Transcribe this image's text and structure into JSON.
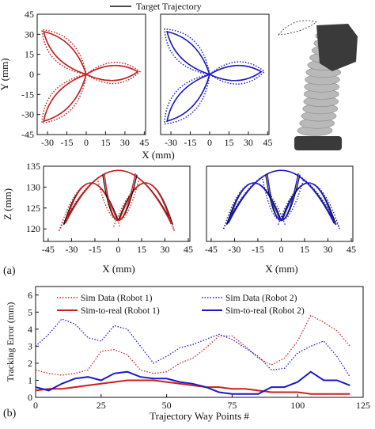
{
  "figure": {
    "top_legend_label": "Target Trajectory",
    "panel_a_label": "(a)",
    "panel_b_label": "(b)"
  },
  "colors": {
    "target": "#111111",
    "robot1": "#cc1f1f",
    "robot2": "#1a1ac8",
    "robot_body": "#b9b9b9",
    "robot_cap": "#3a3a3a"
  },
  "chart_data": [
    {
      "id": "xy_robot1",
      "type": "line",
      "description_role": "X-Y trajectory, robot 1",
      "xlabel": "X (mm)",
      "ylabel": "Y (mm)",
      "xlim": [
        -38,
        46
      ],
      "ylim": [
        -45,
        45
      ],
      "xticks": [
        -30,
        -15,
        0,
        15,
        30,
        45
      ],
      "yticks": [
        -45,
        -30,
        -15,
        0,
        15,
        30,
        45
      ],
      "lobes": [
        {
          "tip": [
            -33,
            32
          ]
        },
        {
          "tip": [
            40,
            2
          ]
        },
        {
          "tip": [
            -33,
            -35
          ]
        }
      ],
      "series": [
        {
          "style": "solid-black",
          "tip_scale": 1.0,
          "width_scale": 1.0
        },
        {
          "style": "solid-color",
          "tip_scale": 1.0,
          "width_scale": 1.0
        },
        {
          "style": "dotted-color",
          "tip_scale": 1.04,
          "width_scale": 1.35
        }
      ]
    },
    {
      "id": "xy_robot2",
      "type": "line",
      "description_role": "X-Y trajectory, robot 2",
      "xlabel": "X (mm)",
      "xlim": [
        -38,
        46
      ],
      "ylim": [
        -45,
        45
      ],
      "xticks": [
        -30,
        -15,
        0,
        15,
        30,
        45
      ],
      "lobes": [
        {
          "tip": [
            -33,
            32
          ]
        },
        {
          "tip": [
            40,
            2
          ]
        },
        {
          "tip": [
            -33,
            -35
          ]
        }
      ],
      "series": [
        {
          "style": "solid-black",
          "tip_scale": 1.0,
          "width_scale": 1.0
        },
        {
          "style": "solid-color",
          "tip_scale": 1.0,
          "width_scale": 1.0
        },
        {
          "style": "dotted-color",
          "tip_scale": 1.06,
          "width_scale": 1.4
        }
      ]
    },
    {
      "id": "xz_robot1",
      "type": "line",
      "description_role": "X-Z trajectory, robot 1",
      "xlabel": "X (mm)",
      "ylabel": "Z (mm)",
      "xlim": [
        -48,
        46
      ],
      "ylim": [
        117,
        135
      ],
      "xticks": [
        -45,
        -30,
        -15,
        0,
        15,
        30,
        45
      ],
      "yticks": [
        120,
        125,
        130,
        135
      ],
      "arches": [
        {
          "left": [
            -35,
            121
          ],
          "right": [
            35,
            121
          ],
          "peak": [
            0,
            134
          ]
        },
        {
          "left": [
            -35,
            121
          ],
          "right": [
            0,
            122
          ],
          "peak": [
            -18,
            131
          ]
        },
        {
          "left": [
            0,
            122
          ],
          "right": [
            35,
            121
          ],
          "peak": [
            18,
            131
          ]
        },
        {
          "left": [
            -10,
            133
          ],
          "right": [
            12,
            133
          ],
          "peak": [
            0,
            122
          ],
          "inverted": true
        }
      ],
      "dotted_offsets": {
        "left": -6,
        "right": 2,
        "bottom": -3
      }
    },
    {
      "id": "xz_robot2",
      "type": "line",
      "description_role": "X-Z trajectory, robot 2",
      "xlabel": "X (mm)",
      "xlim": [
        -48,
        46
      ],
      "ylim": [
        117,
        135
      ],
      "xticks": [
        -45,
        -30,
        -15,
        0,
        15,
        30,
        45
      ],
      "arches": [
        {
          "left": [
            -35,
            121
          ],
          "right": [
            35,
            121
          ],
          "peak": [
            0,
            134
          ]
        },
        {
          "left": [
            -35,
            121
          ],
          "right": [
            0,
            122
          ],
          "peak": [
            -18,
            131
          ]
        },
        {
          "left": [
            0,
            122
          ],
          "right": [
            35,
            121
          ],
          "peak": [
            18,
            131
          ]
        },
        {
          "left": [
            -10,
            133
          ],
          "right": [
            12,
            133
          ],
          "peak": [
            0,
            122
          ],
          "inverted": true
        }
      ],
      "dotted_offsets": {
        "left": -4,
        "right": 5,
        "bottom": -2
      }
    },
    {
      "id": "tracking_error",
      "type": "line",
      "xlabel": "Trajectory Way Points #",
      "ylabel": "Tracking Error (mm)",
      "xlim": [
        0,
        125
      ],
      "ylim": [
        0,
        6.5
      ],
      "xticks": [
        0,
        25,
        50,
        75,
        100,
        125
      ],
      "yticks": [
        0,
        1,
        2,
        3,
        4,
        5,
        6
      ],
      "legend_position": "top",
      "series": [
        {
          "name": "Sim Data (Robot 1)",
          "style": "dotted",
          "color": "robot1",
          "x": [
            0,
            5,
            10,
            15,
            20,
            25,
            30,
            35,
            40,
            45,
            50,
            55,
            60,
            65,
            70,
            75,
            80,
            85,
            90,
            95,
            100,
            105,
            110,
            115,
            120
          ],
          "y": [
            1.6,
            1.4,
            1.3,
            1.4,
            1.6,
            2.7,
            2.8,
            2.5,
            1.6,
            1.4,
            1.5,
            2.0,
            2.3,
            2.9,
            3.6,
            3.6,
            3.0,
            2.3,
            1.9,
            2.3,
            3.3,
            4.8,
            4.4,
            3.9,
            3.0
          ]
        },
        {
          "name": "Sim Data (Robot 2)",
          "style": "dotted",
          "color": "robot2",
          "x": [
            0,
            5,
            10,
            15,
            20,
            25,
            30,
            35,
            40,
            45,
            50,
            55,
            60,
            65,
            70,
            75,
            80,
            85,
            90,
            95,
            100,
            105,
            110,
            115,
            120
          ],
          "y": [
            3.0,
            3.7,
            4.6,
            4.3,
            3.5,
            3.3,
            4.2,
            4.0,
            3.0,
            2.0,
            2.4,
            2.9,
            3.1,
            3.4,
            3.7,
            3.4,
            2.9,
            2.4,
            1.6,
            1.7,
            2.6,
            3.0,
            3.3,
            2.4,
            1.2
          ]
        },
        {
          "name": "Sim-to-real (Robot 1)",
          "style": "solid",
          "color": "robot1",
          "x": [
            0,
            5,
            10,
            15,
            20,
            25,
            30,
            35,
            40,
            45,
            50,
            55,
            60,
            65,
            70,
            75,
            80,
            85,
            90,
            95,
            100,
            105,
            110,
            115,
            120
          ],
          "y": [
            0.4,
            0.5,
            0.5,
            0.6,
            0.7,
            0.8,
            0.9,
            1.0,
            1.0,
            1.0,
            0.9,
            0.8,
            0.7,
            0.6,
            0.6,
            0.5,
            0.5,
            0.4,
            0.3,
            0.3,
            0.3,
            0.2,
            0.2,
            0.2,
            0.2
          ]
        },
        {
          "name": "Sim-to-real (Robot 2)",
          "style": "solid",
          "color": "robot2",
          "x": [
            0,
            5,
            10,
            15,
            20,
            25,
            30,
            35,
            40,
            45,
            50,
            55,
            60,
            65,
            70,
            75,
            80,
            85,
            90,
            95,
            100,
            105,
            110,
            115,
            120
          ],
          "y": [
            0.6,
            0.4,
            0.8,
            1.1,
            1.2,
            1.0,
            1.4,
            1.5,
            1.2,
            1.1,
            1.1,
            0.9,
            0.8,
            0.6,
            0.3,
            0.2,
            0.2,
            0.2,
            0.6,
            0.6,
            0.9,
            1.5,
            1.0,
            1.0,
            0.7
          ]
        }
      ]
    }
  ]
}
